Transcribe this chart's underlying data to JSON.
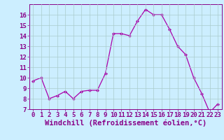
{
  "x": [
    0,
    1,
    2,
    3,
    4,
    5,
    6,
    7,
    8,
    9,
    10,
    11,
    12,
    13,
    14,
    15,
    16,
    17,
    18,
    19,
    20,
    21,
    22,
    23
  ],
  "y": [
    9.7,
    10.0,
    8.0,
    8.3,
    8.7,
    8.0,
    8.7,
    8.8,
    8.8,
    10.4,
    14.2,
    14.2,
    14.0,
    15.4,
    16.5,
    16.0,
    16.0,
    14.6,
    13.0,
    12.2,
    10.0,
    8.5,
    6.7,
    7.5
  ],
  "line_color": "#aa00aa",
  "marker": "D",
  "marker_size": 2,
  "bg_color": "#cceeff",
  "grid_color": "#aacccc",
  "xlabel": "Windchill (Refroidissement éolien,°C)",
  "xlim": [
    -0.5,
    23.5
  ],
  "ylim": [
    7,
    17
  ],
  "yticks": [
    7,
    8,
    9,
    10,
    11,
    12,
    13,
    14,
    15,
    16
  ],
  "xticks": [
    0,
    1,
    2,
    3,
    4,
    5,
    6,
    7,
    8,
    9,
    10,
    11,
    12,
    13,
    14,
    15,
    16,
    17,
    18,
    19,
    20,
    21,
    22,
    23
  ],
  "tick_fontsize": 6.5,
  "xlabel_fontsize": 7.5,
  "text_color": "#880088"
}
